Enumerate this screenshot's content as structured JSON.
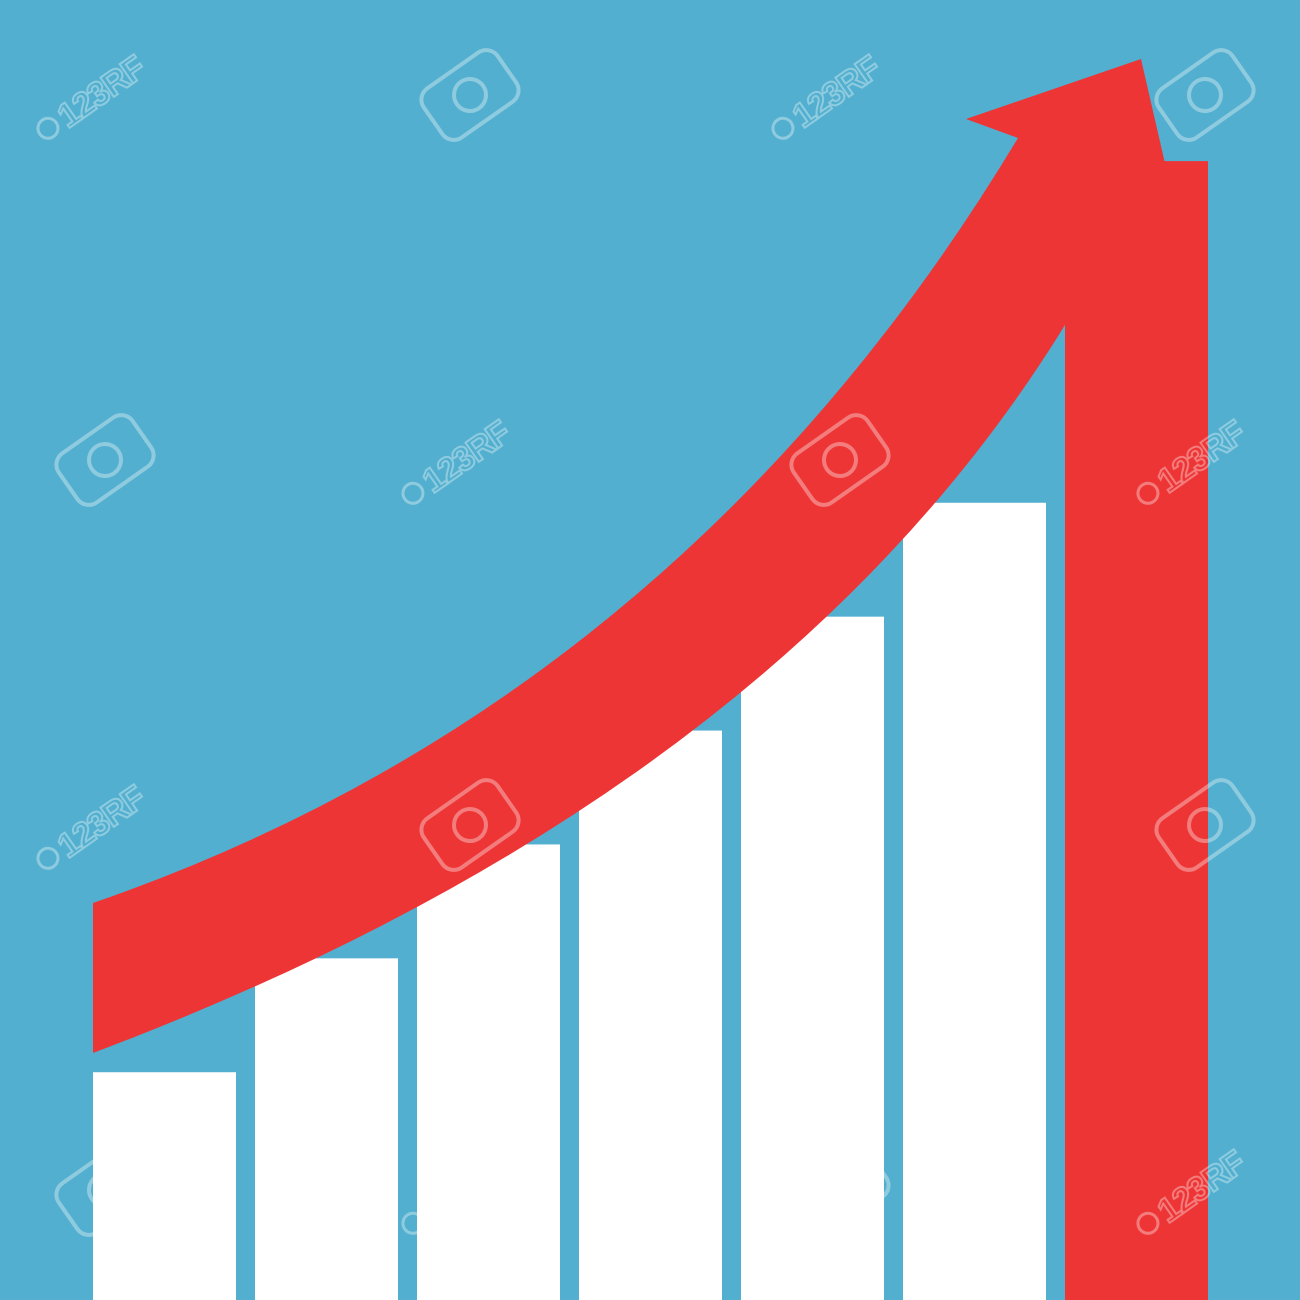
{
  "chart_data": {
    "type": "bar",
    "categories": [
      "",
      "",
      "",
      "",
      "",
      "",
      ""
    ],
    "values": [
      20,
      30,
      40,
      50,
      60,
      70,
      100
    ],
    "bar_colors": [
      "#ffffff",
      "#ffffff",
      "#ffffff",
      "#ffffff",
      "#ffffff",
      "#ffffff",
      "#ee3536"
    ],
    "ylim": [
      0,
      108
    ],
    "grid": false,
    "legend": "none",
    "title": "",
    "xlabel": "",
    "ylabel": "",
    "trend_arrow": {
      "color": "#ee3536",
      "direction": "up-right"
    }
  },
  "background_color": "#52afcf",
  "watermark": {
    "text": "123RF",
    "icon": "camera-icon"
  }
}
